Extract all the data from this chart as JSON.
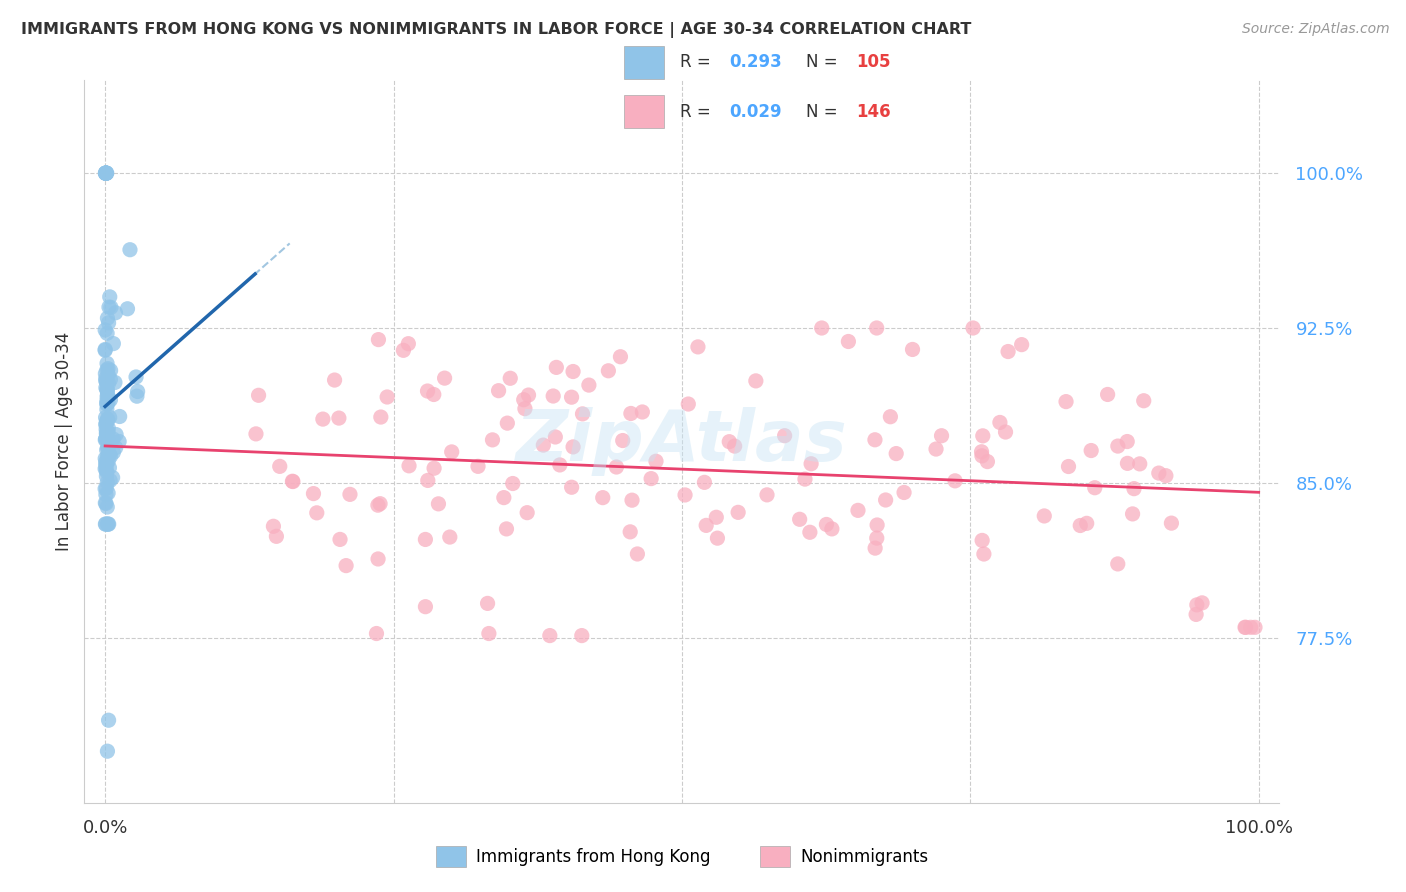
{
  "title": "IMMIGRANTS FROM HONG KONG VS NONIMMIGRANTS IN LABOR FORCE | AGE 30-34 CORRELATION CHART",
  "source": "Source: ZipAtlas.com",
  "ylabel": "In Labor Force | Age 30-34",
  "yticks": [
    0.775,
    0.85,
    0.925,
    1.0
  ],
  "ytick_labels": [
    "77.5%",
    "85.0%",
    "92.5%",
    "100.0%"
  ],
  "xtick_labels": [
    "0.0%",
    "100.0%"
  ],
  "blue_color": "#90c4e8",
  "pink_color": "#f8afc0",
  "trend_blue": "#2166ac",
  "trend_pink": "#e8426e",
  "ytick_color": "#4da6ff",
  "xtick_color": "#333333",
  "grid_color": "#cccccc",
  "title_color": "#333333",
  "source_color": "#999999",
  "watermark": "ZipAtlas",
  "legend_r1_label": "R = ",
  "legend_r1_val": "0.293",
  "legend_n1_label": "N = ",
  "legend_n1_val": "105",
  "legend_r2_label": "R = ",
  "legend_r2_val": "0.029",
  "legend_n2_label": "N = ",
  "legend_n2_val": "146",
  "bottom_legend_blue": "Immigrants from Hong Kong",
  "bottom_legend_pink": "Nonimmigrants"
}
